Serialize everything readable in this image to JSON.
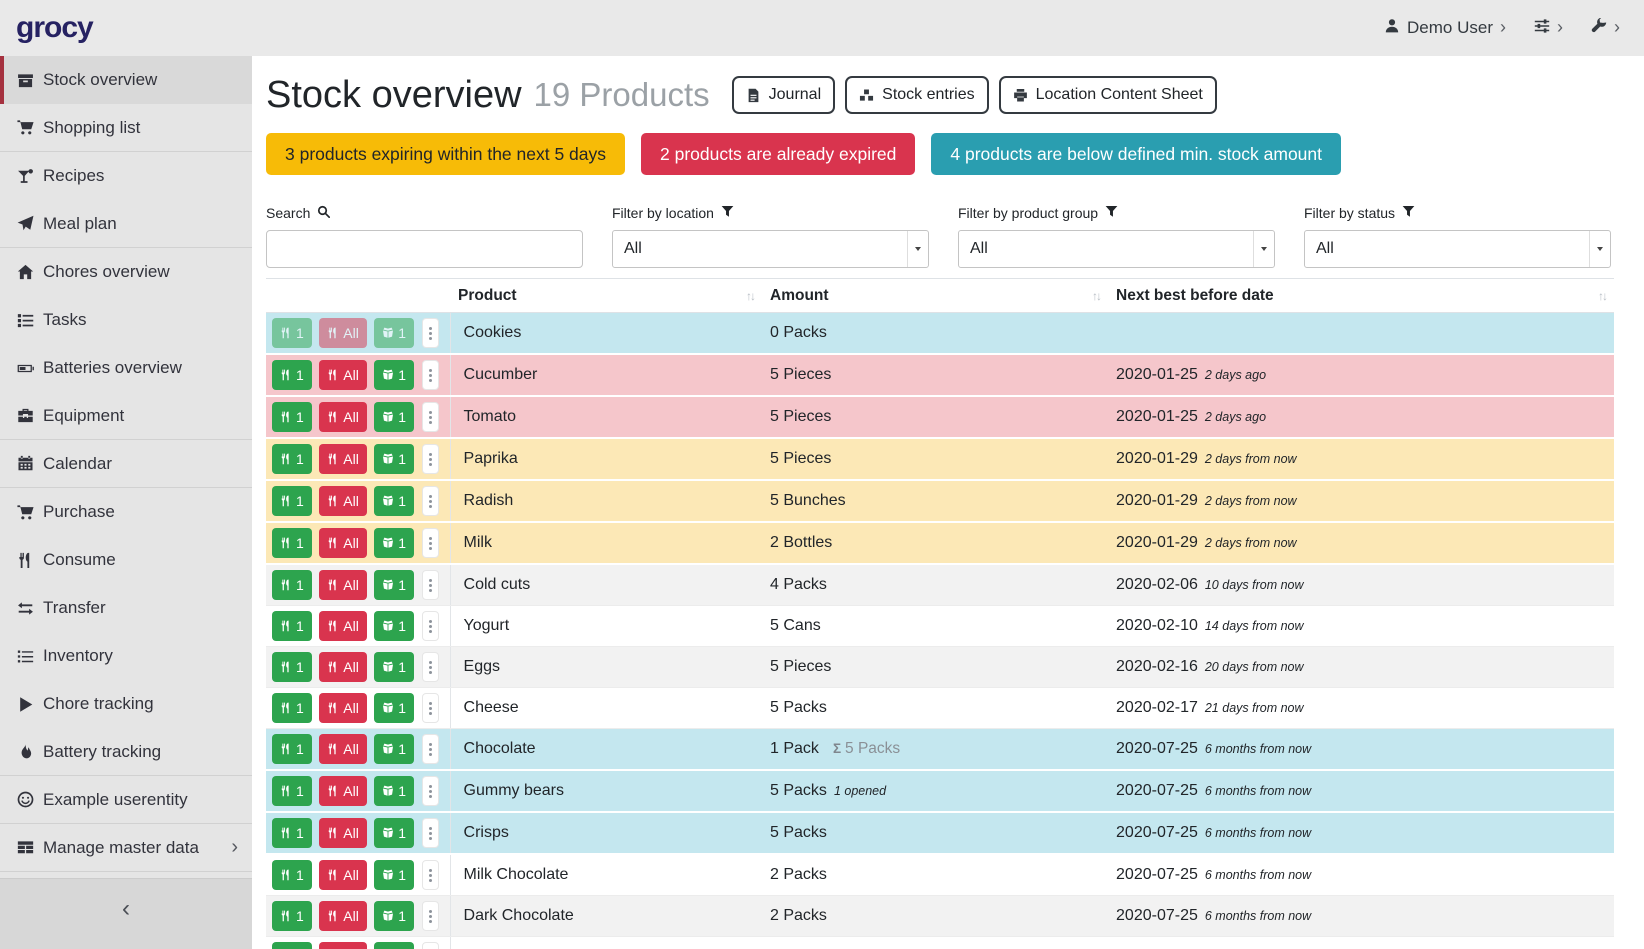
{
  "navbar": {
    "logo": "grocy",
    "user_label": "Demo User"
  },
  "sidebar": {
    "collapse_icon": "‹",
    "items": [
      {
        "label": "Stock overview",
        "icon": "box",
        "active": true
      },
      {
        "label": "Shopping list",
        "icon": "cart",
        "divider_after": true
      },
      {
        "label": "Recipes",
        "icon": "cocktail"
      },
      {
        "label": "Meal plan",
        "icon": "plane",
        "divider_after": true
      },
      {
        "label": "Chores overview",
        "icon": "home"
      },
      {
        "label": "Tasks",
        "icon": "tasks"
      },
      {
        "label": "Batteries overview",
        "icon": "battery"
      },
      {
        "label": "Equipment",
        "icon": "toolbox",
        "divider_after": true
      },
      {
        "label": "Calendar",
        "icon": "calendar",
        "divider_after": true
      },
      {
        "label": "Purchase",
        "icon": "cart"
      },
      {
        "label": "Consume",
        "icon": "utensils"
      },
      {
        "label": "Transfer",
        "icon": "exchange"
      },
      {
        "label": "Inventory",
        "icon": "list"
      },
      {
        "label": "Chore tracking",
        "icon": "play"
      },
      {
        "label": "Battery tracking",
        "icon": "fire",
        "divider_after": true
      },
      {
        "label": "Example userentity",
        "icon": "smile",
        "divider_after": true
      },
      {
        "label": "Manage master data",
        "icon": "table",
        "divider_after": true,
        "chevron": true
      }
    ]
  },
  "header": {
    "title": "Stock overview",
    "subtitle": "19 Products",
    "buttons": [
      {
        "label": "Journal",
        "icon": "file",
        "name": "journal-button"
      },
      {
        "label": "Stock entries",
        "icon": "cubes",
        "name": "stock-entries-button"
      },
      {
        "label": "Location Content Sheet",
        "icon": "printer",
        "name": "location-content-sheet-button"
      }
    ]
  },
  "alerts": [
    {
      "name": "alert-expiring",
      "text": "3 products expiring within the next 5 days",
      "color": "#f7bb07",
      "text_color": "#212529"
    },
    {
      "name": "alert-expired",
      "text": "2 products are already expired",
      "color": "#d9344e",
      "text_color": "#ffffff"
    },
    {
      "name": "alert-below-min-stock",
      "text": "4 products are below defined min. stock amount",
      "color": "#2a9eb0",
      "text_color": "#ffffff"
    }
  ],
  "filters": {
    "search_label": "Search",
    "search_value": "",
    "location_label": "Filter by location",
    "location_value": "All",
    "product_group_label": "Filter by product group",
    "product_group_value": "All",
    "status_label": "Filter by status",
    "status_value": "All"
  },
  "table": {
    "columns": [
      "Product",
      "Amount",
      "Next best before date"
    ],
    "sort_icon": "↑↓",
    "row_buttons": {
      "consume_one": "1",
      "consume_all": "All",
      "open_one": "1"
    },
    "rows": [
      {
        "product": "Cookies",
        "amount": "0 Packs",
        "date": "",
        "date_note": "",
        "status": "belowmin",
        "faded": true
      },
      {
        "product": "Cucumber",
        "amount": "5 Pieces",
        "date": "2020-01-25",
        "date_note": "2 days ago",
        "status": "expired"
      },
      {
        "product": "Tomato",
        "amount": "5 Pieces",
        "date": "2020-01-25",
        "date_note": "2 days ago",
        "status": "expired"
      },
      {
        "product": "Paprika",
        "amount": "5 Pieces",
        "date": "2020-01-29",
        "date_note": "2 days from now",
        "status": "expiring"
      },
      {
        "product": "Radish",
        "amount": "5 Bunches",
        "date": "2020-01-29",
        "date_note": "2 days from now",
        "status": "expiring"
      },
      {
        "product": "Milk",
        "amount": "2 Bottles",
        "date": "2020-01-29",
        "date_note": "2 days from now",
        "status": "expiring"
      },
      {
        "product": "Cold cuts",
        "amount": "4 Packs",
        "date": "2020-02-06",
        "date_note": "10 days from now",
        "status": "none"
      },
      {
        "product": "Yogurt",
        "amount": "5 Cans",
        "date": "2020-02-10",
        "date_note": "14 days from now",
        "status": "none"
      },
      {
        "product": "Eggs",
        "amount": "5 Pieces",
        "date": "2020-02-16",
        "date_note": "20 days from now",
        "status": "none"
      },
      {
        "product": "Cheese",
        "amount": "5 Packs",
        "date": "2020-02-17",
        "date_note": "21 days from now",
        "status": "none"
      },
      {
        "product": "Chocolate",
        "amount": "1 Pack",
        "amount_total": "5 Packs",
        "date": "2020-07-25",
        "date_note": "6 months from now",
        "status": "belowmin"
      },
      {
        "product": "Gummy bears",
        "amount": "5 Packs",
        "amount_note": "1 opened",
        "date": "2020-07-25",
        "date_note": "6 months from now",
        "status": "belowmin"
      },
      {
        "product": "Crisps",
        "amount": "5 Packs",
        "date": "2020-07-25",
        "date_note": "6 months from now",
        "status": "belowmin"
      },
      {
        "product": "Milk Chocolate",
        "amount": "2 Packs",
        "date": "2020-07-25",
        "date_note": "6 months from now",
        "status": "none"
      },
      {
        "product": "Dark Chocolate",
        "amount": "2 Packs",
        "date": "2020-07-25",
        "date_note": "6 months from now",
        "status": "none"
      },
      {
        "product": "",
        "amount": "",
        "date": "",
        "date_note": "",
        "status": "partial"
      }
    ]
  },
  "colors": {
    "sidebar_accent_red": "#a5313f",
    "alert_yellow": "#f7bb07",
    "alert_red": "#d9344e",
    "alert_teal": "#2a9eb0",
    "button_green": "#2da44e",
    "button_red": "#d9344e",
    "row_expired": "#f5c6cb",
    "row_expiring": "#fce8b6",
    "row_below_min": "#c4e7ef",
    "logo_navy": "#262262"
  }
}
